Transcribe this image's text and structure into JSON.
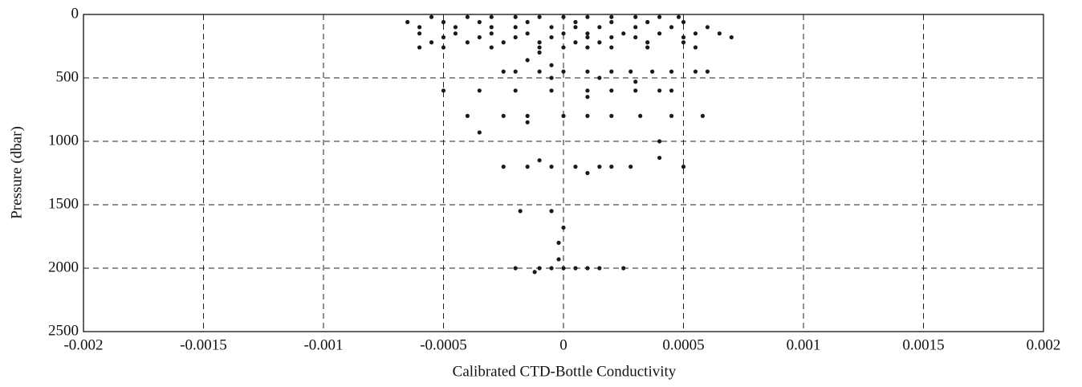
{
  "chart_data": {
    "type": "scatter",
    "xlabel": "Calibrated CTD-Bottle Conductivity",
    "ylabel": "Pressure (dbar)",
    "xlim": [
      -0.002,
      0.002
    ],
    "xticks": [
      -0.002,
      -0.0015,
      -0.001,
      -0.0005,
      0,
      0.0005,
      0.001,
      0.0015,
      0.002
    ],
    "ylim": [
      0,
      2500
    ],
    "yticks": [
      0,
      500,
      1000,
      1500,
      2000,
      2500
    ],
    "y_reversed": true,
    "grid": true,
    "color": "#1a1a1a",
    "series": [
      {
        "name": null,
        "x": [
          -0.00055,
          -0.0004,
          -0.0003,
          -0.0002,
          -0.0001,
          0,
          0.0001,
          0.0002,
          0.0003,
          0.0004,
          0.00048,
          -0.00065,
          -0.0005,
          -0.00035,
          -0.00015,
          5e-05,
          0.0002,
          0.00035,
          0.0005,
          -0.0006,
          -0.00045,
          -0.0003,
          -0.0002,
          -5e-05,
          5e-05,
          0.00015,
          0.0003,
          0.00045,
          0.0006,
          -0.0006,
          -0.00045,
          -0.0003,
          -0.00015,
          0,
          0.0001,
          0.00025,
          0.0004,
          0.00055,
          0.00065,
          -0.0005,
          -0.00035,
          -0.0002,
          -5e-05,
          0.0001,
          0.0002,
          0.0003,
          0.0005,
          0.0007,
          -0.00055,
          -0.0004,
          -0.00025,
          -0.0001,
          5e-05,
          0.00015,
          0.00035,
          0.0005,
          -0.0006,
          -0.0005,
          -0.0003,
          -0.0001,
          0,
          0.0001,
          0.0002,
          0.00035,
          0.00055,
          -0.0001,
          -0.00015,
          -5e-05,
          -0.00025,
          -0.0002,
          -0.0001,
          0,
          0.0001,
          0.0002,
          0.00028,
          0.00037,
          0.00045,
          0.00055,
          0.0006,
          -5e-05,
          0.00015,
          0.0003,
          -0.0005,
          -0.00035,
          -0.0002,
          -5e-05,
          0.0001,
          0.0002,
          0.0003,
          0.0004,
          0.00045,
          0.0001,
          -0.0004,
          -0.00025,
          -0.00015,
          0,
          0.0001,
          0.0002,
          0.00032,
          0.00045,
          0.00058,
          -0.00015,
          -0.00035,
          0.0004,
          0.0004,
          -0.0001,
          -0.00025,
          -0.00015,
          -5e-05,
          5e-05,
          0.00015,
          0.0002,
          0.00028,
          0.0005,
          0.0001,
          -0.00018,
          -5e-05,
          0,
          -2e-05,
          -2e-05,
          -0.0002,
          -0.0001,
          -5e-05,
          0,
          5e-05,
          0.0001,
          0.00015,
          0.00025,
          -0.00012
        ],
        "y": [
          20,
          20,
          20,
          20,
          20,
          20,
          20,
          20,
          20,
          20,
          20,
          60,
          60,
          60,
          60,
          60,
          60,
          60,
          60,
          100,
          100,
          100,
          100,
          100,
          100,
          100,
          100,
          100,
          100,
          150,
          150,
          150,
          150,
          150,
          150,
          150,
          150,
          150,
          150,
          180,
          180,
          180,
          180,
          180,
          180,
          180,
          180,
          180,
          220,
          220,
          220,
          220,
          220,
          220,
          220,
          220,
          260,
          260,
          260,
          260,
          260,
          260,
          260,
          260,
          260,
          300,
          360,
          400,
          450,
          450,
          450,
          450,
          450,
          450,
          450,
          450,
          450,
          450,
          450,
          500,
          500,
          530,
          600,
          600,
          600,
          600,
          600,
          600,
          600,
          600,
          600,
          650,
          800,
          800,
          800,
          800,
          800,
          800,
          800,
          800,
          800,
          850,
          930,
          1000,
          1130,
          1150,
          1200,
          1200,
          1200,
          1200,
          1200,
          1200,
          1200,
          1200,
          1250,
          1550,
          1550,
          1680,
          1800,
          1930,
          2000,
          2000,
          2000,
          2000,
          2000,
          2000,
          2000,
          2000,
          2030
        ]
      }
    ]
  }
}
